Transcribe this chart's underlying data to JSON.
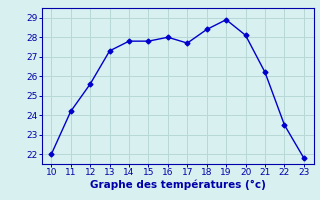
{
  "x": [
    10,
    11,
    12,
    13,
    14,
    15,
    16,
    17,
    18,
    19,
    20,
    21,
    22,
    23
  ],
  "y": [
    22.0,
    24.2,
    25.6,
    27.3,
    27.8,
    27.8,
    28.0,
    27.7,
    28.4,
    28.9,
    28.1,
    26.2,
    23.5,
    21.8
  ],
  "line_color": "#0000cc",
  "marker": "D",
  "marker_size": 2.5,
  "linewidth": 1.0,
  "xlabel": "Graphe des températures (°c)",
  "xlim": [
    9.5,
    23.5
  ],
  "ylim": [
    21.5,
    29.5
  ],
  "xticks": [
    10,
    11,
    12,
    13,
    14,
    15,
    16,
    17,
    18,
    19,
    20,
    21,
    22,
    23
  ],
  "yticks": [
    22,
    23,
    24,
    25,
    26,
    27,
    28,
    29
  ],
  "background_color": "#d8f0f0",
  "grid_color": "#b8d8d8",
  "tick_color": "#0000aa",
  "label_color": "#0000aa",
  "xlabel_fontsize": 7.5,
  "tick_fontsize": 6.5
}
